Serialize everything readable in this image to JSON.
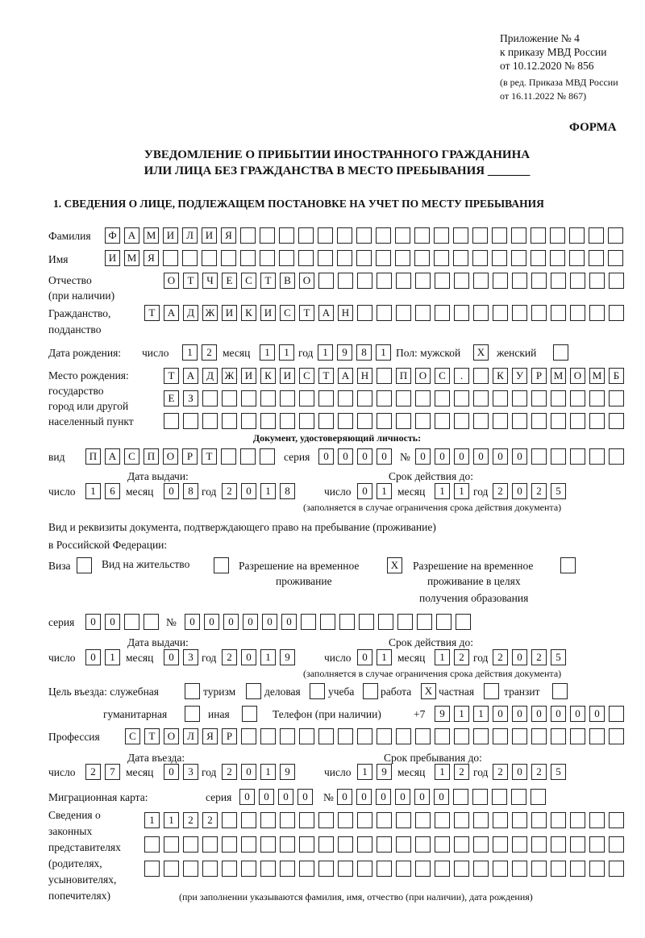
{
  "header": {
    "appendix": "Приложение № 4",
    "order": "к приказу МВД России",
    "order_date": "от 10.12.2020 № 856",
    "edition1": "(в ред. Приказа МВД России",
    "edition2": "от 16.11.2022 № 867)",
    "form": "ФОРМА",
    "title1": "УВЕДОМЛЕНИЕ О ПРИБЫТИИ ИНОСТРАННОГО ГРАЖДАНИНА",
    "title2": "ИЛИ ЛИЦА БЕЗ ГРАЖДАНСТВА В МЕСТО ПРЕБЫВАНИЯ _______",
    "section1": "1. СВЕДЕНИЯ О ЛИЦЕ, ПОДЛЕЖАЩЕМ ПОСТАНОВКЕ НА УЧЕТ ПО МЕСТУ ПРЕБЫВАНИЯ"
  },
  "labels": {
    "surname": "Фамилия",
    "name": "Имя",
    "patronymic": "Отчество",
    "patronymic_note": "(при наличии)",
    "citizenship": "Гражданство,",
    "citizenship2": "подданство",
    "birth_date": "Дата рождения:",
    "day": "число",
    "month": "месяц",
    "year": "год",
    "sex": "Пол: мужской",
    "female": "женский",
    "birth_place": "Место рождения:",
    "state": "государство",
    "city": "город или другой",
    "settlement": "населенный пункт",
    "id_doc": "Документ, удостоверяющий личность:",
    "kind": "вид",
    "series": "серия",
    "number": "№",
    "issue_date": "Дата выдачи:",
    "valid_until": "Срок действия до:",
    "valid_note": "(заполняется в случае ограничения срока действия документа)",
    "right_doc": "Вид и реквизиты документа, подтверждающего право на пребывание (проживание)",
    "right_doc2": "в Российской Федерации:",
    "visa": "Виза",
    "residence": "Вид на жительство",
    "temp1": "Разрешение на временное",
    "temp2": "проживание",
    "edu1": "Разрешение на временное",
    "edu2": "проживание в целях",
    "edu3": "получения образования",
    "purpose": "Цель въезда: служебная",
    "tourism": "туризм",
    "business": "деловая",
    "study": "учеба",
    "work": "работа",
    "private": "частная",
    "transit": "транзит",
    "humanitarian": "гуманитарная",
    "other": "иная",
    "phone": "Телефон (при наличии)",
    "phone_prefix": "+7",
    "profession": "Профессия",
    "entry_date": "Дата въезда:",
    "stay_until": "Срок пребывания до:",
    "migration_card": "Миграционная карта:",
    "rep1": "Сведения о",
    "rep2": "законных",
    "rep3": "представителях",
    "rep4": "(родителях,",
    "rep5": "усыновителях,",
    "rep6": "попечителях)",
    "rep_note": "(при заполнении указываются фамилия, имя, отчество (при наличии), дата рождения)"
  },
  "values": {
    "surname": "ФАМИЛИЯ",
    "name": "ИМЯ",
    "patronymic": "ОТЧЕСТВО",
    "citizenship": "ТАДЖИКИСТАН",
    "birth_day": "12",
    "birth_month": "11",
    "birth_year": "1981",
    "male": "X",
    "female": "",
    "birth_place1": "ТАДЖИКИСТАН ПОС. КУРМОМБ",
    "birth_place2": "ЕЗ",
    "birth_place3": "",
    "doc_kind": "ПАСПОРТ",
    "doc_series": "0000",
    "doc_number": "000000",
    "doc_issue_day": "16",
    "doc_issue_month": "08",
    "doc_issue_year": "2018",
    "doc_valid_day": "01",
    "doc_valid_month": "11",
    "doc_valid_year": "2025",
    "visa": "",
    "residence": "",
    "temp_residence": "X",
    "edu_residence": "",
    "right_series": "00",
    "right_number": "000000",
    "right_issue_day": "01",
    "right_issue_month": "03",
    "right_issue_year": "2019",
    "right_valid_day": "01",
    "right_valid_month": "12",
    "right_valid_year": "2025",
    "purpose_service": "",
    "purpose_tourism": "",
    "purpose_business": "",
    "purpose_study": "",
    "purpose_work": "X",
    "purpose_private": "",
    "purpose_transit": "",
    "purpose_humanitarian": "",
    "purpose_other": "",
    "phone": "911000000",
    "profession": "СТОЛЯР",
    "entry_day": "27",
    "entry_month": "03",
    "entry_year": "2019",
    "stay_day": "19",
    "stay_month": "12",
    "stay_year": "2025",
    "mig_series": "0000",
    "mig_number": "000000",
    "rep1": "1122",
    "rep2": "",
    "rep3": ""
  }
}
